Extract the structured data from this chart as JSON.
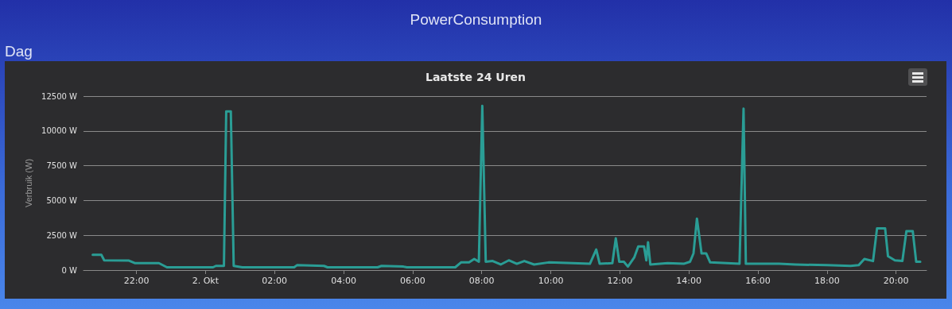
{
  "chart_data": {
    "type": "line",
    "title": "Laatste 24 Uren",
    "ylabel": "Verbruik (W)",
    "annotations": [
      "PowerConsumption",
      "Dag"
    ],
    "x": [
      "--10-01T20:44",
      "--10-01T20:59",
      "--10-01T21:04",
      "--10-01T21:47",
      "--10-01T21:57",
      "--10-01T22:39",
      "--10-01T22:53",
      "--10-02T00:13",
      "--10-02T00:18",
      "--10-02T00:32",
      "--10-02T00:36",
      "--10-02T00:44",
      "--10-02T00:49",
      "--10-02T01:04",
      "--10-02T02:34",
      "--10-02T02:39",
      "--10-02T03:26",
      "--10-02T03:32",
      "--10-02T04:59",
      "--10-02T05:06",
      "--10-02T05:44",
      "--10-02T05:50",
      "--10-02T07:14",
      "--10-02T07:24",
      "--10-02T07:38",
      "--10-02T07:47",
      "--10-02T07:55",
      "--10-02T08:01",
      "--10-02T08:07",
      "--10-02T08:19",
      "--10-02T08:33",
      "--10-02T08:47",
      "--10-02T09:01",
      "--10-02T09:14",
      "--10-02T09:31",
      "--10-02T09:56",
      "--10-02T10:38",
      "--10-02T11:08",
      "--10-02T11:19",
      "--10-02T11:25",
      "--10-02T11:47",
      "--10-02T11:53",
      "--10-02T11:59",
      "--10-02T12:07",
      "--10-02T12:14",
      "--10-02T12:25",
      "--10-02T12:32",
      "--10-02T12:42",
      "--10-02T12:46",
      "--10-02T12:49",
      "--10-02T12:53",
      "--10-02T13:23",
      "--10-02T13:51",
      "--10-02T14:02",
      "--10-02T14:08",
      "--10-02T14:14",
      "--10-02T14:22",
      "--10-02T14:30",
      "--10-02T14:37",
      "--10-02T15:28",
      "--10-02T15:35",
      "--10-02T15:39",
      "--10-02T16:37",
      "--10-02T17:05",
      "--10-02T18:00",
      "--10-02T18:41",
      "--10-02T18:55",
      "--10-02T19:05",
      "--10-02T19:20",
      "--10-02T19:27",
      "--10-02T19:41",
      "--10-02T19:46",
      "--10-02T19:58",
      "--10-02T20:11",
      "--10-02T20:18",
      "--10-02T20:29",
      "--10-02T20:35",
      "--10-02T20:42"
    ],
    "series": [
      {
        "color": "#2a9d95",
        "values": [
          1100,
          1100,
          700,
          680,
          500,
          500,
          200,
          200,
          300,
          300,
          11400,
          11400,
          300,
          200,
          200,
          350,
          300,
          200,
          200,
          300,
          250,
          200,
          200,
          550,
          550,
          800,
          600,
          11800,
          600,
          650,
          400,
          700,
          450,
          650,
          400,
          550,
          500,
          450,
          1480,
          450,
          500,
          2280,
          600,
          600,
          250,
          900,
          1700,
          1700,
          700,
          2000,
          400,
          500,
          450,
          600,
          1200,
          3700,
          1200,
          1200,
          550,
          450,
          11600,
          450,
          450,
          400,
          350,
          300,
          350,
          800,
          650,
          3000,
          3000,
          1000,
          700,
          650,
          2800,
          2800,
          600,
          600
        ]
      }
    ],
    "xlim": [
      "--10-01T20:28",
      "--10-02T20:53"
    ],
    "xticks": [
      {
        "value": "--10-01T22:00",
        "label": "22:00"
      },
      {
        "value": "--10-02T00:00",
        "label": "2. Okt"
      },
      {
        "value": "--10-02T02:00",
        "label": "02:00"
      },
      {
        "value": "--10-02T04:00",
        "label": "04:00"
      },
      {
        "value": "--10-02T06:00",
        "label": "06:00"
      },
      {
        "value": "--10-02T08:00",
        "label": "08:00"
      },
      {
        "value": "--10-02T10:00",
        "label": "10:00"
      },
      {
        "value": "--10-02T12:00",
        "label": "12:00"
      },
      {
        "value": "--10-02T14:00",
        "label": "14:00"
      },
      {
        "value": "--10-02T16:00",
        "label": "16:00"
      },
      {
        "value": "--10-02T18:00",
        "label": "18:00"
      },
      {
        "value": "--10-02T20:00",
        "label": "20:00"
      }
    ],
    "ylim": [
      0,
      12500
    ],
    "yticks": [
      {
        "value": 0,
        "label": "0 W"
      },
      {
        "value": 2500,
        "label": "2500 W"
      },
      {
        "value": 5000,
        "label": "5000 W"
      },
      {
        "value": 7500,
        "label": "7500 W"
      },
      {
        "value": 10000,
        "label": "10000 W"
      },
      {
        "value": 12500,
        "label": "12500 W"
      }
    ],
    "grid": "y",
    "marker": "none",
    "line_style": "solid"
  }
}
